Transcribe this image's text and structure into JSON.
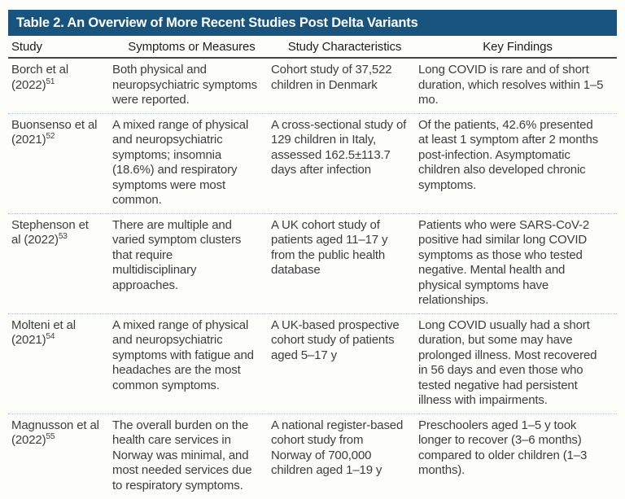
{
  "table": {
    "title": "Table 2. An Overview of More Recent Studies Post Delta Variants",
    "columns": [
      "Study",
      "Symptoms or Measures",
      "Study Characteristics",
      "Key Findings"
    ],
    "rows": [
      {
        "study": "Borch et al (2022)",
        "ref": "51",
        "symptoms": "Both physical and neuropsychiatric symptoms were reported.",
        "characteristics": "Cohort study of 37,522 children in Denmark",
        "findings": "Long COVID is rare and of short duration, which resolves within 1–5 mo."
      },
      {
        "study": "Buonsenso et al (2021)",
        "ref": "52",
        "symptoms": "A mixed range of physical and neuropsychiatric symptoms; insomnia (18.6%) and respiratory symptoms were most common.",
        "characteristics": "A cross-sectional study of 129 children in Italy, assessed 162.5±113.7 days after infection",
        "findings": "Of the patients, 42.6% presented at least 1 symptom after 2 months post-infection. Asymptomatic children also developed chronic symptoms."
      },
      {
        "study": "Stephenson et al (2022)",
        "ref": "53",
        "symptoms": "There are multiple and varied symptom clusters that require multidisciplinary approaches.",
        "characteristics": "A UK cohort study of patients aged 11–17 y from the public health database",
        "findings": "Patients who were SARS-CoV-2 positive had similar long COVID symptoms as those who tested negative. Mental health and physical symptoms have relationships."
      },
      {
        "study": "Molteni et al (2021)",
        "ref": "54",
        "symptoms": "A mixed range of physical and neuropsychiatric symptoms with fatigue and headaches are the most common symptoms.",
        "characteristics": "A UK-based prospective cohort study of patients aged 5–17 y",
        "findings": "Long COVID usually had a short duration, but some may have prolonged illness. Most recovered in 56 days and even those who tested negative had persistent illness with impairments."
      },
      {
        "study": "Magnusson et al (2022)",
        "ref": "55",
        "symptoms": "The overall burden on the health care services in Norway was minimal, and most needed services due to respiratory symptoms.",
        "characteristics": "A national register-based cohort study from Norway of 700,000 children aged 1–19 y",
        "findings": "Preschoolers aged 1–5 y took longer to recover (3–6 months) compared to older children (1–3 months)."
      }
    ]
  }
}
